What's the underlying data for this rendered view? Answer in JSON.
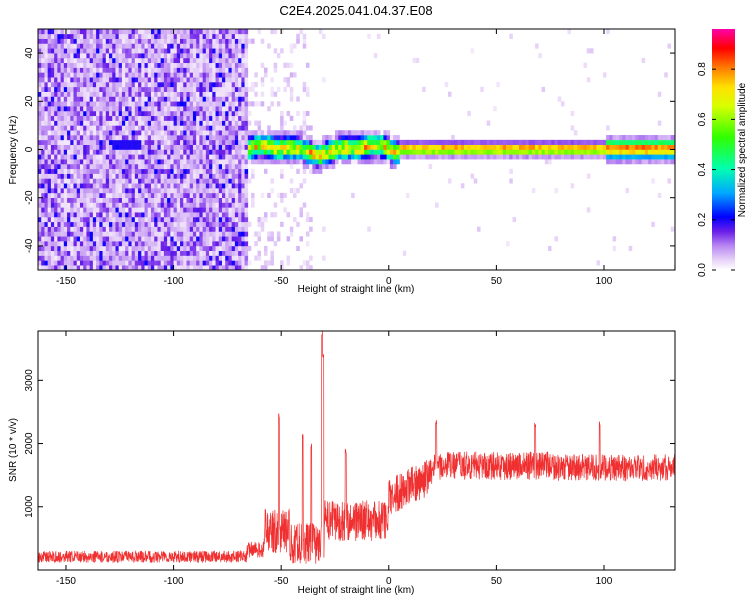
{
  "figure": {
    "title": "C2E4.2025.041.04.37.E08"
  },
  "chart_data": [
    {
      "type": "heatmap",
      "title": "C2E4.2025.041.04.37.E08",
      "xlabel": "Height of straight line (km)",
      "ylabel": "Frequency (Hz)",
      "xlim": [
        -163,
        133
      ],
      "ylim": [
        -50,
        50
      ],
      "xticks": [
        -150,
        -100,
        -50,
        0,
        50,
        100
      ],
      "yticks": [
        -40,
        -20,
        0,
        20,
        40
      ],
      "colorbar": {
        "label": "Normalized spectral amplitude",
        "range": [
          0,
          0.96
        ],
        "ticks": [
          0.0,
          0.2,
          0.4,
          0.6,
          0.8
        ],
        "colors": [
          "#ffffff",
          "#e3c8f5",
          "#a15cf0",
          "#5a12e6",
          "#0000ff",
          "#00c8ff",
          "#00ff80",
          "#40ff00",
          "#c8ff00",
          "#ffff00",
          "#ff8800",
          "#ff0000",
          "#ff00a0"
        ]
      },
      "regions": [
        {
          "name": "noise",
          "x_range": [
            -163,
            -66
          ],
          "f_range": [
            -50,
            50
          ],
          "level_range": [
            0.0,
            0.25
          ]
        },
        {
          "name": "sparse noise",
          "x_range": [
            -66,
            -36
          ],
          "f_range": [
            -50,
            50
          ],
          "level_range": [
            0.0,
            0.08
          ]
        },
        {
          "name": "signal band",
          "x_range": [
            -66,
            133
          ],
          "f_center": 0,
          "f_halfwidth": [
            5,
            2
          ],
          "level_range": [
            0.3,
            0.95
          ]
        }
      ]
    },
    {
      "type": "line",
      "xlabel": "Height of straight line (km)",
      "ylabel": "SNR (10 * v/v)",
      "xlim": [
        -163,
        133
      ],
      "ylim": [
        0,
        3780
      ],
      "xticks": [
        -150,
        -100,
        -50,
        0,
        50,
        100
      ],
      "yticks": [
        1000,
        2000,
        3000
      ],
      "color": "#f03030",
      "segments": [
        {
          "x": [
            -163,
            -66
          ],
          "mean": 210,
          "spread": 190
        },
        {
          "x": [
            -66,
            -58
          ],
          "mean": 320,
          "spread": 250
        },
        {
          "x": [
            -58,
            -46
          ],
          "mean": 620,
          "spread": 700
        },
        {
          "x": [
            -46,
            -30
          ],
          "mean": 420,
          "spread": 650
        },
        {
          "x": [
            -30,
            0
          ],
          "mean": 780,
          "spread": 650
        },
        {
          "x": [
            0,
            20
          ],
          "mean": 1150,
          "spread": 600
        },
        {
          "x": [
            20,
            75
          ],
          "mean": 1650,
          "spread": 450
        },
        {
          "x": [
            75,
            133
          ],
          "mean": 1620,
          "spread": 420
        }
      ],
      "peaks": [
        {
          "x": -51,
          "y": 2480
        },
        {
          "x": -40,
          "y": 2150
        },
        {
          "x": -36,
          "y": 2000
        },
        {
          "x": -31,
          "y": 3780
        },
        {
          "x": -30.5,
          "y": 3420
        },
        {
          "x": -20,
          "y": 1920
        },
        {
          "x": 22,
          "y": 2380
        },
        {
          "x": 68,
          "y": 2330
        },
        {
          "x": 98,
          "y": 2370
        }
      ]
    }
  ]
}
